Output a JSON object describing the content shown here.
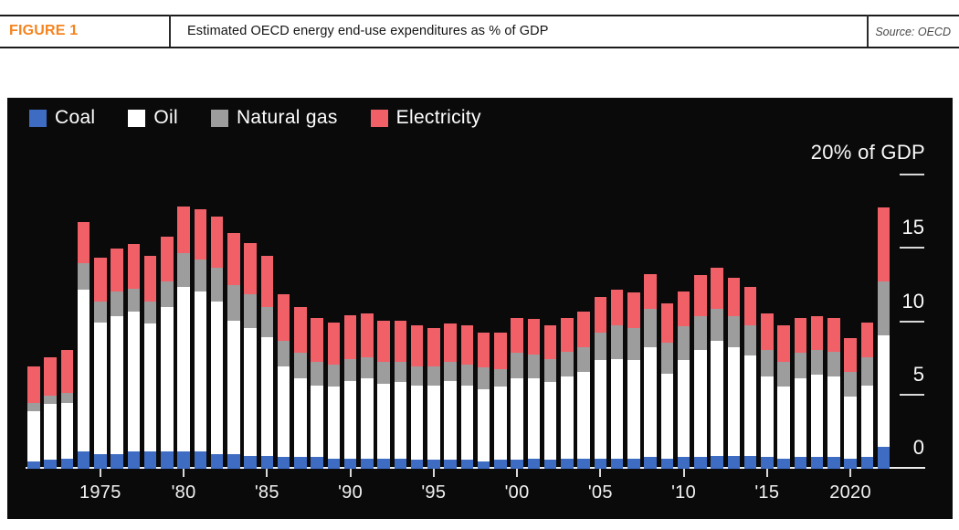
{
  "header": {
    "figure_label": "FIGURE 1",
    "title": "Estimated OECD energy end-use expenditures as % of GDP",
    "source": "Source: OECD"
  },
  "colors": {
    "panel_background": "#0a0a0b",
    "accent_orange": "#f5841f",
    "axis_line": "#ececec",
    "tick_text": "#fafafa",
    "coal": "#3e6cc2",
    "oil": "#ffffff",
    "natural_gas": "#9d9d9e",
    "electricity": "#f15f67"
  },
  "chart_data": {
    "type": "bar",
    "stacked": true,
    "annotation": "20% of GDP",
    "legend_position": "top-left",
    "ylim": [
      0,
      20
    ],
    "years": [
      1971,
      1972,
      1973,
      1974,
      1975,
      1976,
      1977,
      1978,
      1979,
      1980,
      1981,
      1982,
      1983,
      1984,
      1985,
      1986,
      1987,
      1988,
      1989,
      1990,
      1991,
      1992,
      1993,
      1994,
      1995,
      1996,
      1997,
      1998,
      1999,
      2000,
      2001,
      2002,
      2003,
      2004,
      2005,
      2006,
      2007,
      2008,
      2009,
      2010,
      2011,
      2012,
      2013,
      2014,
      2015,
      2016,
      2017,
      2018,
      2019,
      2020,
      2021,
      2022
    ],
    "series": [
      {
        "name": "Coal",
        "color": "#3e6cc2",
        "values": [
          0.5,
          0.6,
          0.7,
          1.2,
          1.0,
          1.0,
          1.2,
          1.2,
          1.2,
          1.2,
          1.2,
          1.0,
          1.0,
          0.9,
          0.9,
          0.8,
          0.8,
          0.8,
          0.7,
          0.7,
          0.7,
          0.7,
          0.7,
          0.6,
          0.6,
          0.6,
          0.6,
          0.5,
          0.6,
          0.6,
          0.7,
          0.6,
          0.7,
          0.7,
          0.7,
          0.7,
          0.7,
          0.8,
          0.7,
          0.8,
          0.8,
          0.9,
          0.9,
          0.9,
          0.8,
          0.7,
          0.8,
          0.8,
          0.8,
          0.7,
          0.8,
          1.5
        ]
      },
      {
        "name": "Oil",
        "color": "#ffffff",
        "values": [
          3.4,
          3.8,
          3.8,
          11.0,
          9.0,
          9.4,
          9.5,
          8.7,
          9.8,
          11.2,
          10.9,
          10.4,
          9.1,
          8.7,
          8.1,
          6.2,
          5.4,
          4.9,
          4.9,
          5.3,
          5.5,
          5.1,
          5.2,
          5.1,
          5.1,
          5.4,
          5.1,
          4.9,
          5.0,
          5.6,
          5.5,
          5.3,
          5.6,
          5.9,
          6.7,
          6.8,
          6.7,
          7.5,
          5.8,
          6.6,
          7.3,
          7.8,
          7.4,
          6.8,
          5.5,
          4.9,
          5.4,
          5.6,
          5.5,
          4.2,
          4.9,
          7.6
        ]
      },
      {
        "name": "Natural gas",
        "color": "#9d9d9e",
        "values": [
          0.6,
          0.6,
          0.7,
          1.8,
          1.4,
          1.7,
          1.6,
          1.5,
          1.8,
          2.3,
          2.2,
          2.3,
          2.4,
          2.3,
          2.0,
          1.7,
          1.7,
          1.6,
          1.5,
          1.5,
          1.4,
          1.5,
          1.4,
          1.3,
          1.3,
          1.3,
          1.4,
          1.5,
          1.2,
          1.7,
          1.6,
          1.6,
          1.7,
          1.7,
          1.9,
          2.3,
          2.2,
          2.6,
          2.1,
          2.3,
          2.3,
          2.2,
          2.1,
          2.1,
          1.8,
          1.7,
          1.7,
          1.7,
          1.7,
          1.7,
          1.9,
          3.7
        ]
      },
      {
        "name": "Electricity",
        "color": "#f15f67",
        "values": [
          2.5,
          2.6,
          2.9,
          2.8,
          3.0,
          2.9,
          3.0,
          3.1,
          3.0,
          3.2,
          3.4,
          3.5,
          3.6,
          3.5,
          3.5,
          3.2,
          3.1,
          3.0,
          2.9,
          3.0,
          3.0,
          2.8,
          2.8,
          2.8,
          2.6,
          2.6,
          2.7,
          2.4,
          2.5,
          2.4,
          2.4,
          2.3,
          2.3,
          2.4,
          2.4,
          2.4,
          2.4,
          2.4,
          2.7,
          2.4,
          2.8,
          2.8,
          2.6,
          2.6,
          2.5,
          2.5,
          2.4,
          2.3,
          2.3,
          2.3,
          2.4,
          5.0
        ]
      }
    ],
    "x_ticks": [
      {
        "year": 1975,
        "label": "1975"
      },
      {
        "year": 1980,
        "label": "'80"
      },
      {
        "year": 1985,
        "label": "'85"
      },
      {
        "year": 1990,
        "label": "'90"
      },
      {
        "year": 1995,
        "label": "'95"
      },
      {
        "year": 2000,
        "label": "'00"
      },
      {
        "year": 2005,
        "label": "'05"
      },
      {
        "year": 2010,
        "label": "'10"
      },
      {
        "year": 2015,
        "label": "'15"
      },
      {
        "year": 2020,
        "label": "2020"
      }
    ],
    "y_ticks": [
      {
        "value": 0,
        "label": "0",
        "dash": false
      },
      {
        "value": 5,
        "label": "5",
        "dash": true
      },
      {
        "value": 10,
        "label": "10",
        "dash": true
      },
      {
        "value": 15,
        "label": "15",
        "dash": true
      },
      {
        "value": 20,
        "label": "",
        "dash": true
      }
    ]
  }
}
